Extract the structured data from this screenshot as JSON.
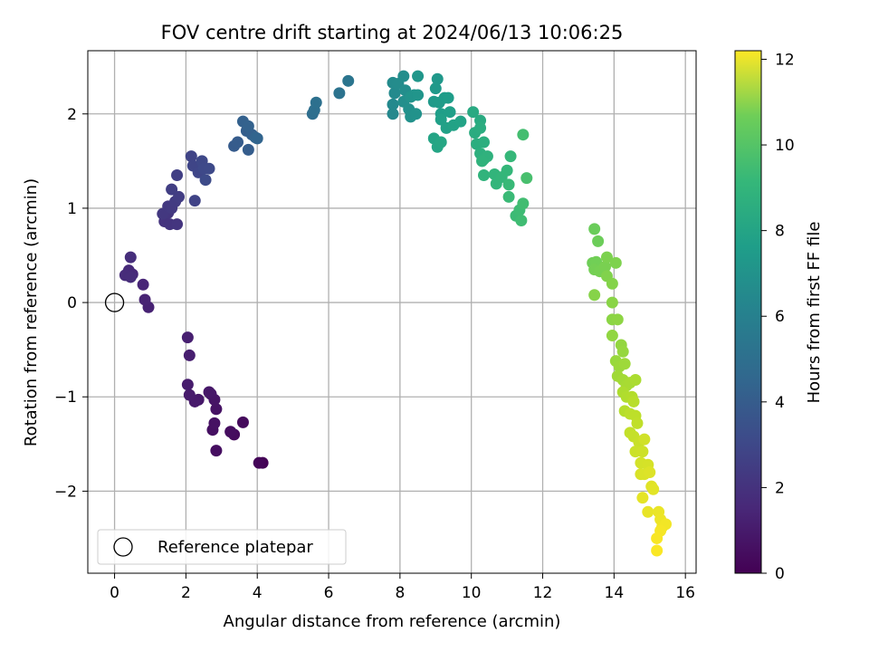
{
  "chart_data": {
    "type": "scatter",
    "title": "FOV centre drift starting at 2024/06/13 10:06:25",
    "xlabel": "Angular distance from reference (arcmin)",
    "ylabel": "Rotation from reference (arcmin)",
    "xlim": [
      -0.75,
      16.3
    ],
    "ylim": [
      -2.87,
      2.67
    ],
    "xticks": [
      0,
      2,
      4,
      6,
      8,
      10,
      12,
      14,
      16
    ],
    "yticks": [
      -2,
      -1,
      0,
      1,
      2
    ],
    "grid": true,
    "legend": {
      "placement": "lower-left",
      "entries": [
        "Reference platepar"
      ]
    },
    "reference_point": {
      "x": 0,
      "y": 0,
      "label": "Reference platepar"
    },
    "colorbar": {
      "label": "Hours from first FF file",
      "range": [
        0,
        12.2
      ],
      "ticks": [
        0,
        2,
        4,
        6,
        8,
        10,
        12
      ],
      "colormap": "viridis"
    },
    "series": [
      {
        "color_by": "hours",
        "points": [
          [
            4.15,
            -1.7,
            0.05
          ],
          [
            4.05,
            -1.7,
            0.15
          ],
          [
            3.6,
            -1.27,
            0.3
          ],
          [
            3.35,
            -1.4,
            0.35
          ],
          [
            3.25,
            -1.37,
            0.4
          ],
          [
            2.85,
            -1.57,
            0.45
          ],
          [
            2.75,
            -1.35,
            0.5
          ],
          [
            2.8,
            -1.28,
            0.55
          ],
          [
            2.85,
            -1.13,
            0.6
          ],
          [
            2.8,
            -1.03,
            0.65
          ],
          [
            2.7,
            -0.97,
            0.7
          ],
          [
            2.65,
            -0.95,
            0.75
          ],
          [
            2.35,
            -1.03,
            0.8
          ],
          [
            2.25,
            -1.05,
            0.85
          ],
          [
            2.1,
            -0.98,
            0.9
          ],
          [
            2.05,
            -0.87,
            0.95
          ],
          [
            2.1,
            -0.56,
            1.0
          ],
          [
            2.05,
            -0.37,
            1.05
          ],
          [
            0.95,
            -0.05,
            1.15
          ],
          [
            0.85,
            0.03,
            1.2
          ],
          [
            0.8,
            0.19,
            1.3
          ],
          [
            0.5,
            0.3,
            1.4
          ],
          [
            0.4,
            0.34,
            1.45
          ],
          [
            0.3,
            0.29,
            1.5
          ],
          [
            0.45,
            0.27,
            1.55
          ],
          [
            0.45,
            0.48,
            1.6
          ],
          [
            1.4,
            0.86,
            1.8
          ],
          [
            1.55,
            0.83,
            1.85
          ],
          [
            1.75,
            0.83,
            1.9
          ],
          [
            1.5,
            0.95,
            1.95
          ],
          [
            1.35,
            0.94,
            2.0
          ],
          [
            1.5,
            1.02,
            2.05
          ],
          [
            1.6,
            1.0,
            2.1
          ],
          [
            1.7,
            1.07,
            2.15
          ],
          [
            1.8,
            1.12,
            2.2
          ],
          [
            1.6,
            1.2,
            2.25
          ],
          [
            1.75,
            1.35,
            2.3
          ],
          [
            2.25,
            1.08,
            2.45
          ],
          [
            2.15,
            1.55,
            2.5
          ],
          [
            2.2,
            1.45,
            2.55
          ],
          [
            2.35,
            1.38,
            2.6
          ],
          [
            2.45,
            1.5,
            2.65
          ],
          [
            2.5,
            1.42,
            2.7
          ],
          [
            2.65,
            1.42,
            2.75
          ],
          [
            2.55,
            1.3,
            2.8
          ],
          [
            3.35,
            1.66,
            3.5
          ],
          [
            3.45,
            1.7,
            3.55
          ],
          [
            3.75,
            1.62,
            3.6
          ],
          [
            3.7,
            1.82,
            3.65
          ],
          [
            3.85,
            1.78,
            3.7
          ],
          [
            3.6,
            1.92,
            3.75
          ],
          [
            3.75,
            1.87,
            3.8
          ],
          [
            3.95,
            1.75,
            3.9
          ],
          [
            4.0,
            1.74,
            3.95
          ],
          [
            5.55,
            2.0,
            4.4
          ],
          [
            5.6,
            2.04,
            4.45
          ],
          [
            5.65,
            2.12,
            4.5
          ],
          [
            6.3,
            2.22,
            4.65
          ],
          [
            6.55,
            2.35,
            4.75
          ],
          [
            7.8,
            2.0,
            5.7
          ],
          [
            7.8,
            2.1,
            5.75
          ],
          [
            7.85,
            2.22,
            5.8
          ],
          [
            7.8,
            2.33,
            5.85
          ],
          [
            7.95,
            2.32,
            5.9
          ],
          [
            8.1,
            2.4,
            5.95
          ],
          [
            8.15,
            2.25,
            6.0
          ],
          [
            8.1,
            2.13,
            6.05
          ],
          [
            8.25,
            2.05,
            6.1
          ],
          [
            8.3,
            1.97,
            6.15
          ],
          [
            8.45,
            2.0,
            6.2
          ],
          [
            8.3,
            2.18,
            6.25
          ],
          [
            8.4,
            2.2,
            6.3
          ],
          [
            8.5,
            2.2,
            6.35
          ],
          [
            8.5,
            2.4,
            6.4
          ],
          [
            9.05,
            2.37,
            6.5
          ],
          [
            9.0,
            2.27,
            6.55
          ],
          [
            8.95,
            2.13,
            6.6
          ],
          [
            9.1,
            2.12,
            6.65
          ],
          [
            9.25,
            2.17,
            6.7
          ],
          [
            9.35,
            2.17,
            6.75
          ],
          [
            9.15,
            2.0,
            6.8
          ],
          [
            9.4,
            2.02,
            6.85
          ],
          [
            9.15,
            1.94,
            6.9
          ],
          [
            9.3,
            1.85,
            6.95
          ],
          [
            9.5,
            1.88,
            7.0
          ],
          [
            9.7,
            1.92,
            7.05
          ],
          [
            8.95,
            1.74,
            7.1
          ],
          [
            9.05,
            1.65,
            7.15
          ],
          [
            9.15,
            1.7,
            7.2
          ],
          [
            10.05,
            2.02,
            7.4
          ],
          [
            10.25,
            1.93,
            7.45
          ],
          [
            10.1,
            1.8,
            7.5
          ],
          [
            10.25,
            1.85,
            7.55
          ],
          [
            10.15,
            1.68,
            7.6
          ],
          [
            10.35,
            1.7,
            7.65
          ],
          [
            10.25,
            1.58,
            7.7
          ],
          [
            10.35,
            1.52,
            7.75
          ],
          [
            10.45,
            1.55,
            7.8
          ],
          [
            10.3,
            1.5,
            7.85
          ],
          [
            10.35,
            1.35,
            7.9
          ],
          [
            10.65,
            1.36,
            7.95
          ],
          [
            10.7,
            1.26,
            8.0
          ],
          [
            10.85,
            1.33,
            8.05
          ],
          [
            11.0,
            1.4,
            8.1
          ],
          [
            11.1,
            1.55,
            8.15
          ],
          [
            11.05,
            1.25,
            8.2
          ],
          [
            11.05,
            1.12,
            8.25
          ],
          [
            11.25,
            0.92,
            8.3
          ],
          [
            11.35,
            0.98,
            8.35
          ],
          [
            11.4,
            0.87,
            8.4
          ],
          [
            11.45,
            1.05,
            8.45
          ],
          [
            11.45,
            1.78,
            8.5
          ],
          [
            11.55,
            1.32,
            8.6
          ],
          [
            13.45,
            0.78,
            9.4
          ],
          [
            13.55,
            0.65,
            9.45
          ],
          [
            13.4,
            0.42,
            9.5
          ],
          [
            13.5,
            0.43,
            9.55
          ],
          [
            13.45,
            0.35,
            9.6
          ],
          [
            13.6,
            0.33,
            9.65
          ],
          [
            13.75,
            0.38,
            9.7
          ],
          [
            13.8,
            0.48,
            9.75
          ],
          [
            14.05,
            0.42,
            9.8
          ],
          [
            13.8,
            0.28,
            9.85
          ],
          [
            13.95,
            0.2,
            9.9
          ],
          [
            13.45,
            0.08,
            9.95
          ],
          [
            13.95,
            0.0,
            10.0
          ],
          [
            13.95,
            -0.18,
            10.05
          ],
          [
            14.1,
            -0.18,
            10.1
          ],
          [
            13.95,
            -0.35,
            10.15
          ],
          [
            14.2,
            -0.45,
            10.2
          ],
          [
            14.25,
            -0.52,
            10.25
          ],
          [
            14.05,
            -0.62,
            10.3
          ],
          [
            14.15,
            -0.68,
            10.35
          ],
          [
            14.3,
            -0.65,
            10.4
          ],
          [
            14.1,
            -0.78,
            10.45
          ],
          [
            14.25,
            -0.82,
            10.5
          ],
          [
            14.35,
            -0.88,
            10.55
          ],
          [
            14.45,
            -0.85,
            10.6
          ],
          [
            14.6,
            -0.82,
            10.65
          ],
          [
            14.25,
            -0.95,
            10.7
          ],
          [
            14.35,
            -1.0,
            10.75
          ],
          [
            14.5,
            -1.0,
            10.8
          ],
          [
            14.3,
            -1.15,
            10.85
          ],
          [
            14.55,
            -1.05,
            10.9
          ],
          [
            14.45,
            -1.18,
            10.95
          ],
          [
            14.6,
            -1.2,
            11.0
          ],
          [
            14.65,
            -1.28,
            11.05
          ],
          [
            14.45,
            -1.38,
            11.1
          ],
          [
            14.55,
            -1.42,
            11.15
          ],
          [
            14.7,
            -1.48,
            11.2
          ],
          [
            14.6,
            -1.58,
            11.25
          ],
          [
            14.8,
            -1.58,
            11.3
          ],
          [
            14.85,
            -1.45,
            11.35
          ],
          [
            14.75,
            -1.7,
            11.4
          ],
          [
            14.95,
            -1.72,
            11.45
          ],
          [
            14.75,
            -1.82,
            11.5
          ],
          [
            14.85,
            -1.82,
            11.55
          ],
          [
            15.0,
            -1.8,
            11.6
          ],
          [
            15.05,
            -1.95,
            11.65
          ],
          [
            15.1,
            -1.98,
            11.7
          ],
          [
            14.8,
            -2.07,
            11.75
          ],
          [
            14.95,
            -2.22,
            11.8
          ],
          [
            15.25,
            -2.22,
            11.85
          ],
          [
            15.3,
            -2.3,
            11.9
          ],
          [
            15.35,
            -2.38,
            11.95
          ],
          [
            15.45,
            -2.35,
            12.0
          ],
          [
            15.3,
            -2.42,
            12.05
          ],
          [
            15.2,
            -2.5,
            12.1
          ],
          [
            15.2,
            -2.63,
            12.15
          ]
        ]
      }
    ]
  }
}
